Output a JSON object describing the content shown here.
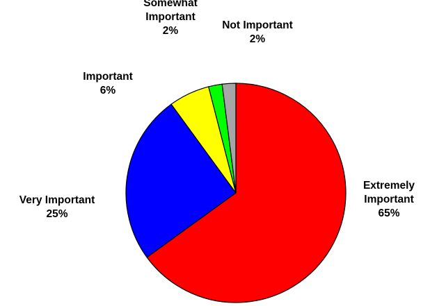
{
  "chart_data": {
    "type": "pie",
    "title": "",
    "slices": [
      {
        "label_lines": [
          "Extremely",
          "Important"
        ],
        "value_label": "65%",
        "value": 65,
        "color": "#ff0000"
      },
      {
        "label_lines": [
          "Very Important"
        ],
        "value_label": "25%",
        "value": 25,
        "color": "#0000ff"
      },
      {
        "label_lines": [
          "Important"
        ],
        "value_label": "6%",
        "value": 6,
        "color": "#ffff00"
      },
      {
        "label_lines": [
          "Somewhat",
          "Important"
        ],
        "value_label": "2%",
        "value": 2,
        "color": "#00ff00"
      },
      {
        "label_lines": [
          "Not Important"
        ],
        "value_label": "2%",
        "value": 2,
        "color": "#a6a6a6"
      }
    ],
    "start_angle": "12 o'clock",
    "direction": "clockwise"
  }
}
